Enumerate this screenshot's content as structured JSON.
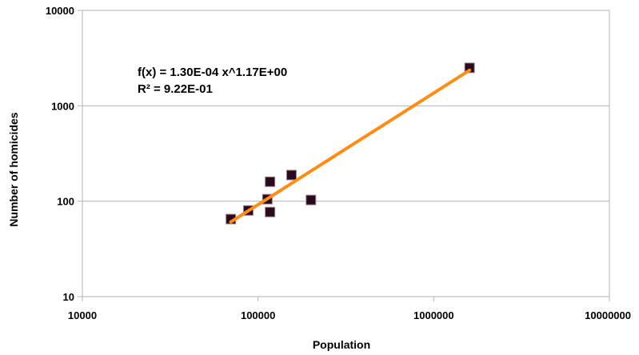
{
  "chart_data": {
    "type": "scatter",
    "xlabel": "Population",
    "ylabel": "Number of homicides",
    "x_scale": "log",
    "y_scale": "log",
    "xlim": [
      10000,
      10000000
    ],
    "ylim": [
      10,
      10000
    ],
    "x_ticks": [
      "10000",
      "100000",
      "1000000",
      "10000000"
    ],
    "y_ticks": [
      "10",
      "100",
      "1000",
      "10000"
    ],
    "grid": "horizontal",
    "legend": "none",
    "series": [
      {
        "marker": "square",
        "color": "#2a0a1f",
        "points": [
          {
            "x": 70000,
            "y": 65
          },
          {
            "x": 88000,
            "y": 80
          },
          {
            "x": 113000,
            "y": 105
          },
          {
            "x": 117000,
            "y": 160
          },
          {
            "x": 117000,
            "y": 77
          },
          {
            "x": 155000,
            "y": 188
          },
          {
            "x": 200000,
            "y": 103
          },
          {
            "x": 1600000,
            "y": 2500
          }
        ]
      }
    ],
    "trendline": {
      "type": "power",
      "a": 0.00013,
      "b": 1.17,
      "x_range": [
        70000,
        1600000
      ],
      "color": "#ff8c14"
    },
    "annotation": {
      "line1": "f(x) = 1.30E-04 x^1.17E+00",
      "line2": "R² = 9.22E-01"
    }
  }
}
